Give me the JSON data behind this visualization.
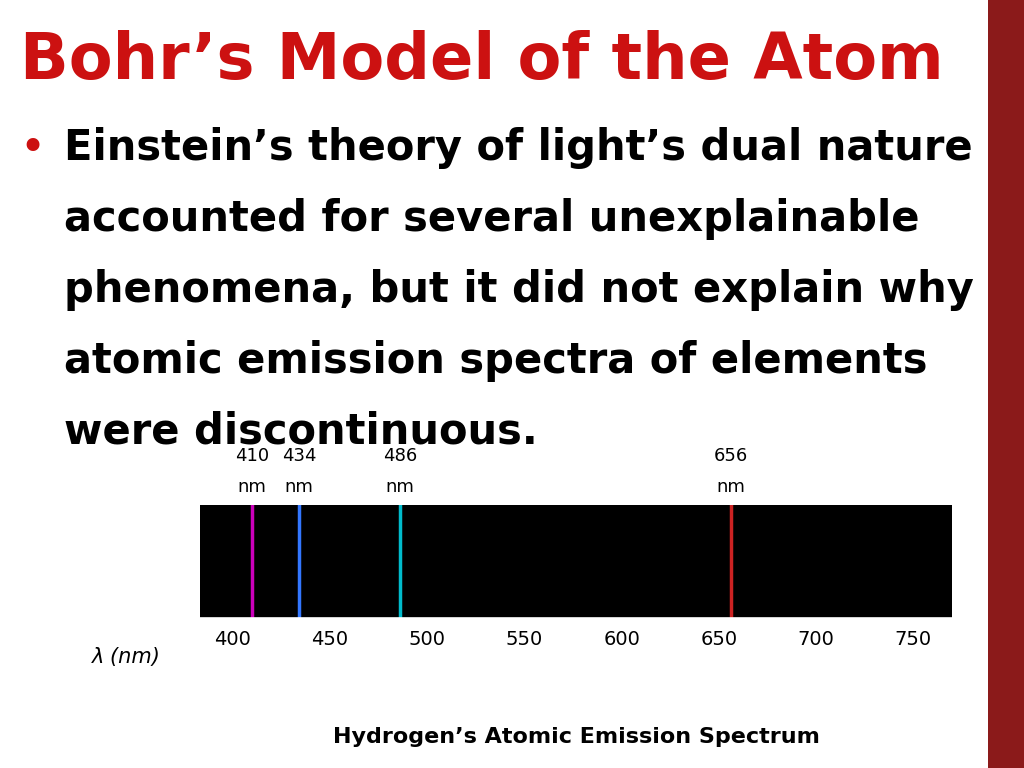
{
  "title": "Bohr’s Model of the Atom",
  "title_color": "#CC1111",
  "title_fontsize": 46,
  "bullet_lines": [
    "Einstein’s theory of light’s dual nature",
    "accounted for several unexplainable",
    "phenomena, but it did not explain why",
    "atomic emission spectra of elements",
    "were discontinuous."
  ],
  "bullet_fontsize": 30,
  "bullet_color": "#000000",
  "background_color": "#ffffff",
  "right_bar_color": "#8B1A1A",
  "spectrum_bg": "#000000",
  "spectrum_xlabel": "λ (nm)",
  "spectrum_title": "Hydrogen’s Atomic Emission Spectrum",
  "spectrum_xlim": [
    383,
    770
  ],
  "spectrum_ticks": [
    400,
    450,
    500,
    550,
    600,
    650,
    700,
    750
  ],
  "emission_lines": [
    {
      "wavelength": 410,
      "color": "#CC00BB",
      "label": "410",
      "label2": "nm"
    },
    {
      "wavelength": 434,
      "color": "#3377FF",
      "label": "434",
      "label2": "nm"
    },
    {
      "wavelength": 486,
      "color": "#00BBCC",
      "label": "486",
      "label2": "nm"
    },
    {
      "wavelength": 656,
      "color": "#CC2222",
      "label": "656",
      "label2": "nm"
    }
  ]
}
